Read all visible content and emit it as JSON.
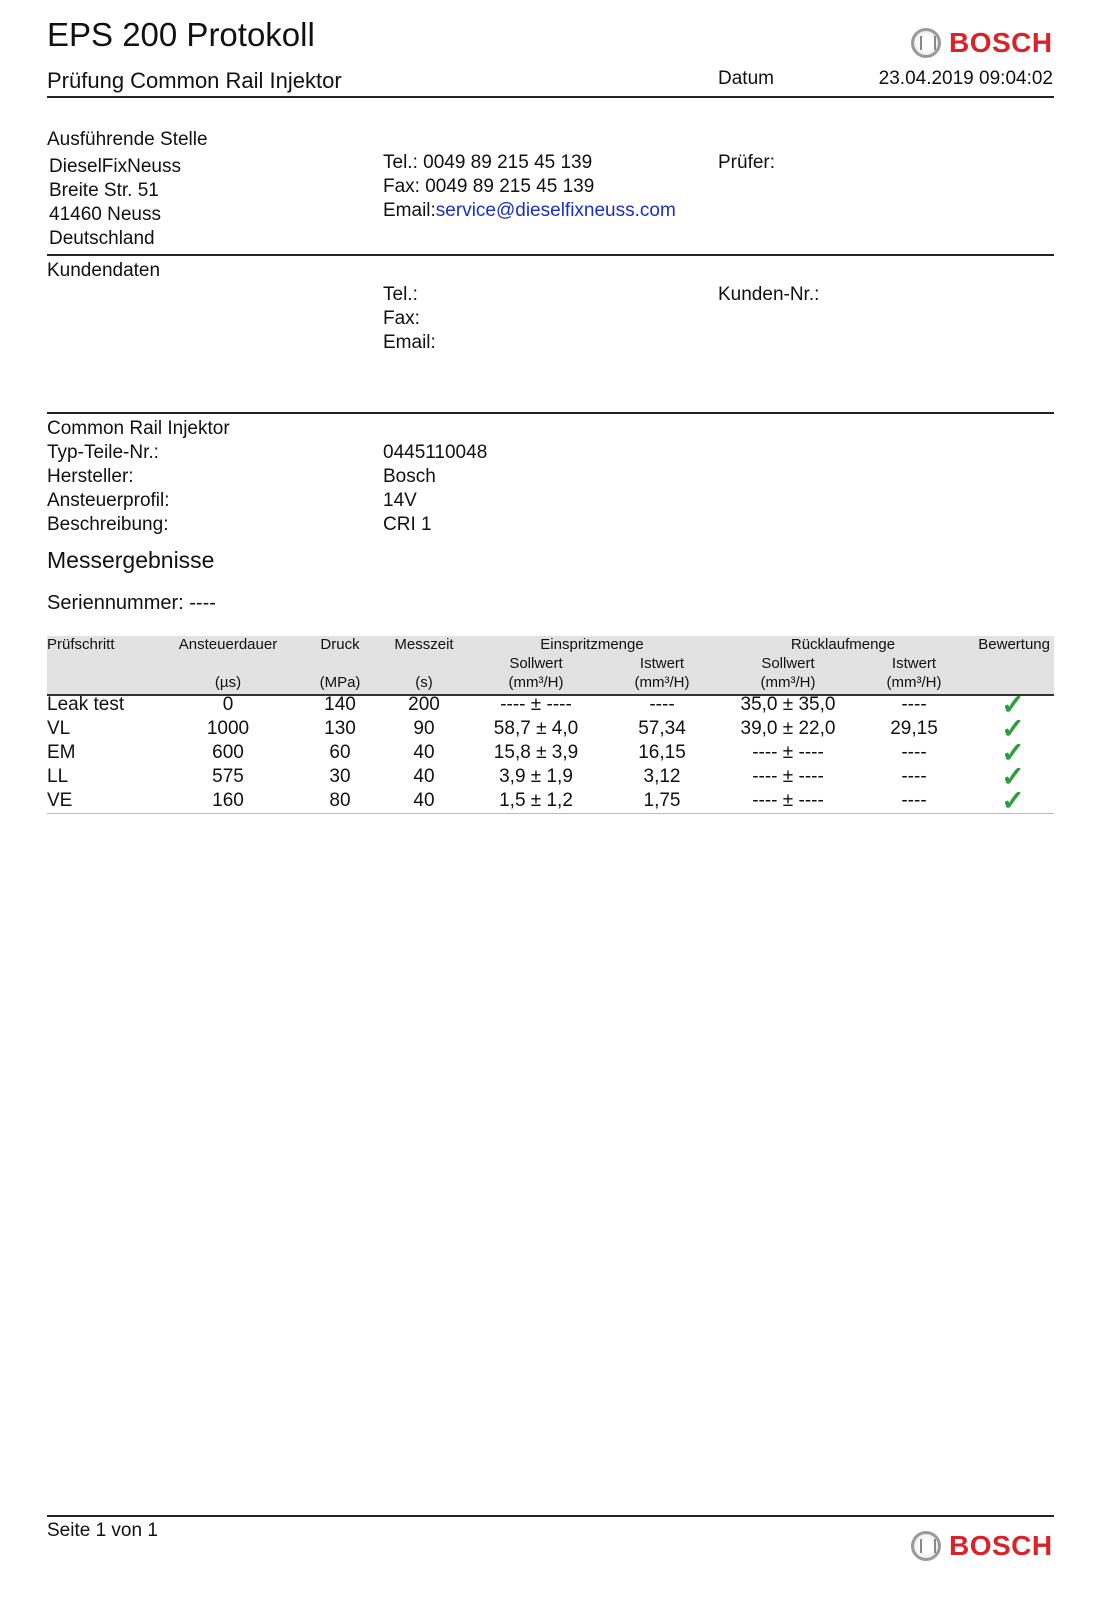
{
  "header": {
    "title": "EPS 200 Protokoll",
    "subtitle": "Prüfung Common Rail Injektor",
    "date_label": "Datum",
    "date_value": "23.04.2019 09:04:02",
    "logo": "BOSCH"
  },
  "executing_site": {
    "heading": "Ausführende Stelle",
    "lines": [
      "DieselFixNeuss",
      "Breite Str. 51",
      "41460 Neuss",
      "Deutschland"
    ],
    "tel_label": "Tel.:",
    "tel": "0049 89 215 45 139",
    "fax_label": "Fax:",
    "fax": "0049 89 215 45 139",
    "email_label": "Email:",
    "email": "service@dieselfixneuss.com",
    "tester_label": "Prüfer:"
  },
  "customer": {
    "heading": "Kundendaten",
    "tel_label": "Tel.:",
    "fax_label": "Fax:",
    "email_label": "Email:",
    "customer_no_label": "Kunden-Nr.:"
  },
  "injector": {
    "heading": "Common Rail Injektor",
    "fields": [
      {
        "label": "Typ-Teile-Nr.:",
        "value": "0445110048"
      },
      {
        "label": "Hersteller:",
        "value": "Bosch"
      },
      {
        "label": "Ansteuerprofil:",
        "value": "14V"
      },
      {
        "label": "Beschreibung:",
        "value": "CRI 1"
      }
    ]
  },
  "results": {
    "heading": "Messergebnisse",
    "serial": "Seriennummer: ----",
    "columns": {
      "step": "Prüfschritt",
      "duration": "Ansteuerdauer",
      "duration_unit": "(µs)",
      "pressure": "Druck",
      "pressure_unit": "(MPa)",
      "time": "Messzeit",
      "time_unit": "(s)",
      "injection": "Einspritzmenge",
      "return": "Rücklaufmenge",
      "nominal": "Sollwert",
      "actual": "Istwert",
      "flow_unit": "(mm³/H)",
      "rating": "Bewertung"
    },
    "rows": [
      {
        "step": "Leak test",
        "duration": "0",
        "pressure": "140",
        "time": "200",
        "inj_nom": "---- ± ----",
        "inj_act": "----",
        "ret_nom": "35,0 ± 35,0",
        "ret_act": "----",
        "rating": "pass"
      },
      {
        "step": "VL",
        "duration": "1000",
        "pressure": "130",
        "time": "90",
        "inj_nom": "58,7 ± 4,0",
        "inj_act": "57,34",
        "ret_nom": "39,0 ± 22,0",
        "ret_act": "29,15",
        "rating": "pass"
      },
      {
        "step": "EM",
        "duration": "600",
        "pressure": "60",
        "time": "40",
        "inj_nom": "15,8 ± 3,9",
        "inj_act": "16,15",
        "ret_nom": "---- ± ----",
        "ret_act": "----",
        "rating": "pass"
      },
      {
        "step": "LL",
        "duration": "575",
        "pressure": "30",
        "time": "40",
        "inj_nom": "3,9 ± 1,9",
        "inj_act": "3,12",
        "ret_nom": "---- ± ----",
        "ret_act": "----",
        "rating": "pass"
      },
      {
        "step": "VE",
        "duration": "160",
        "pressure": "80",
        "time": "40",
        "inj_nom": "1,5 ± 1,2",
        "inj_act": "1,75",
        "ret_nom": "---- ± ----",
        "ret_act": "----",
        "rating": "pass"
      }
    ],
    "pass_color": "#2e9e3a"
  },
  "footer": {
    "page": "Seite 1 von 1",
    "logo": "BOSCH"
  }
}
